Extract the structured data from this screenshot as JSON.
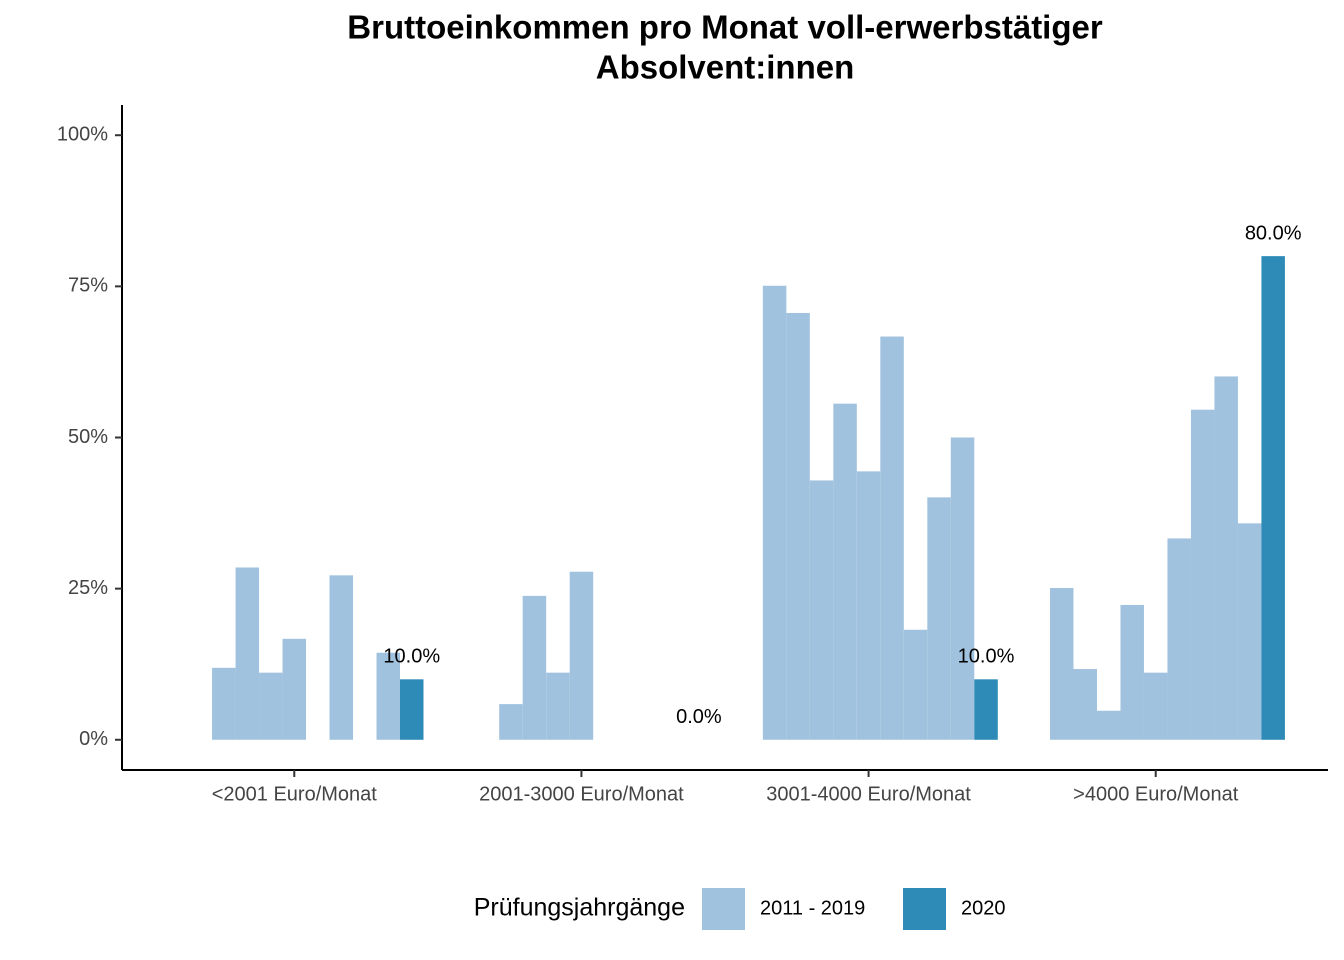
{
  "chart_data": {
    "type": "bar",
    "title": [
      "Bruttoeinkommen pro Monat voll-erwerbstätiger",
      "Absolvent:innen"
    ],
    "categories": [
      "<2001 Euro/Monat",
      "2001-3000 Euro/Monat",
      "3001-4000 Euro/Monat",
      ">4000 Euro/Monat"
    ],
    "legend_title": "Prüfungsjahrgänge",
    "legend_position": "bottom",
    "series": [
      {
        "name": "2011 - 2019",
        "color": "#a1c2de",
        "values": [
          [
            null,
            11.9,
            28.5,
            11.1,
            16.7,
            null,
            27.2,
            null,
            14.4
          ],
          [
            null,
            5.9,
            23.8,
            11.1,
            27.8,
            null,
            null,
            null,
            null
          ],
          [
            75.1,
            70.6,
            42.9,
            55.6,
            44.4,
            66.7,
            18.2,
            40.1,
            50.0
          ],
          [
            25.1,
            11.7,
            4.8,
            22.3,
            11.1,
            33.3,
            54.6,
            60.1,
            35.8
          ]
        ]
      },
      {
        "name": "2020",
        "color": "#2e8bb8",
        "values": [
          10,
          0,
          10,
          80
        ],
        "value_labels": [
          "10.0%",
          "0.0%",
          "10.0%",
          "80.0%"
        ]
      }
    ],
    "ylim": [
      -5,
      105
    ],
    "yticks": [
      {
        "value": 0,
        "label": "0%"
      },
      {
        "value": 25,
        "label": "25%"
      },
      {
        "value": 50,
        "label": "50%"
      },
      {
        "value": 75,
        "label": "75%"
      },
      {
        "value": 100,
        "label": "100%"
      }
    ],
    "grid": false
  }
}
